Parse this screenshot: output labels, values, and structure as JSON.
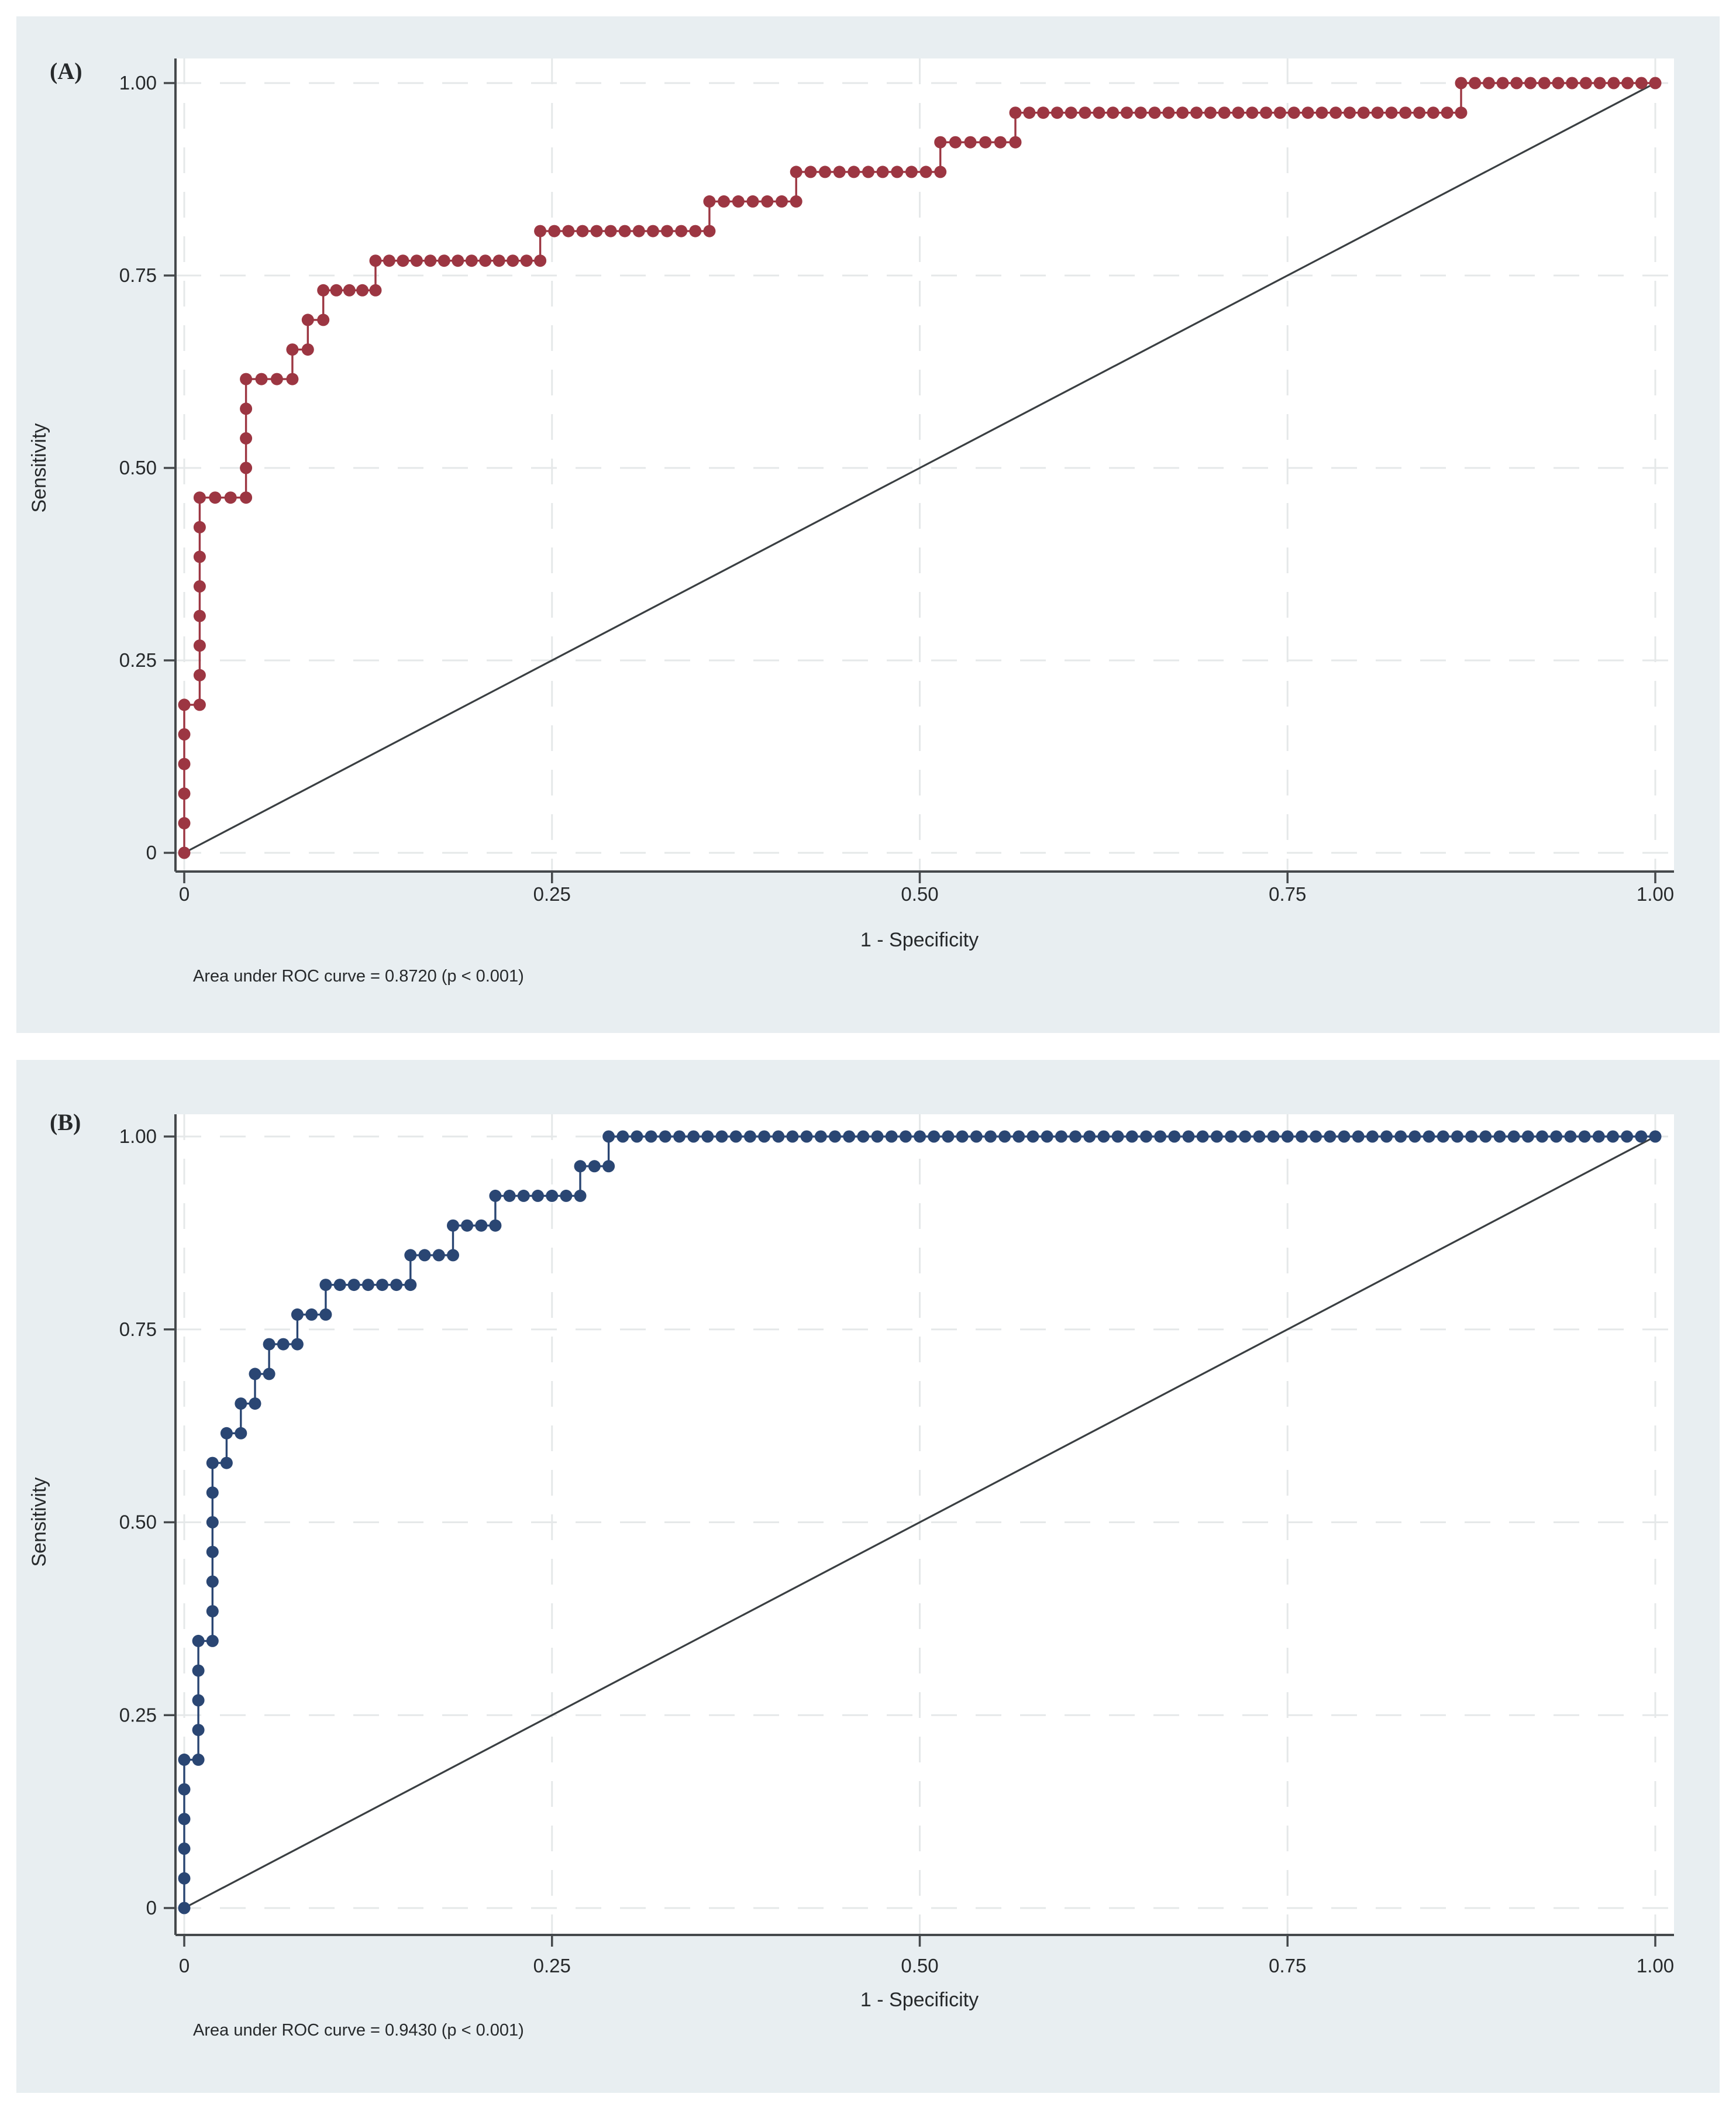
{
  "style": {
    "page_bg": "#ffffff",
    "panel_bg": "#e8eef1",
    "plot_bg": "#ffffff",
    "grid_color": "#e5e8e9",
    "axis_color": "#45494c",
    "text_color": "#26292b",
    "reference_line_color": "#3a3f42"
  },
  "chart_data": [
    {
      "id": "A",
      "panel_label": "(A)",
      "type": "line",
      "subtype": "roc_step_with_markers",
      "xlabel": "1 - Specificity",
      "ylabel": "Sensitivity",
      "caption": "Area under ROC curve = 0.8720 (p < 0.001)",
      "auc": 0.872,
      "p_text": "p < 0.001",
      "xlim": [
        0,
        1
      ],
      "ylim": [
        0,
        1
      ],
      "grid": "dashed",
      "legend": "none",
      "series_color": "#9c3642",
      "marker_dx": 0.0095,
      "marker_dy": 0.03846,
      "xticks": [
        {
          "v": 0,
          "label": "0"
        },
        {
          "v": 0.25,
          "label": "0.25"
        },
        {
          "v": 0.5,
          "label": "0.50"
        },
        {
          "v": 0.75,
          "label": "0.75"
        },
        {
          "v": 1,
          "label": "1.00"
        }
      ],
      "yticks": [
        {
          "v": 0,
          "label": "0"
        },
        {
          "v": 0.25,
          "label": "0.25"
        },
        {
          "v": 0.5,
          "label": "0.50"
        },
        {
          "v": 0.75,
          "label": "0.75"
        },
        {
          "v": 1,
          "label": "1.00"
        }
      ],
      "reference_line": {
        "from": [
          0,
          0
        ],
        "to": [
          1,
          1
        ]
      },
      "step_points": [
        [
          0,
          0
        ],
        [
          0,
          0.1923
        ],
        [
          0.0105,
          0.1923
        ],
        [
          0.0105,
          0.4615
        ],
        [
          0.042,
          0.4615
        ],
        [
          0.042,
          0.6154
        ],
        [
          0.0735,
          0.6154
        ],
        [
          0.0735,
          0.6538
        ],
        [
          0.084,
          0.6538
        ],
        [
          0.084,
          0.6923
        ],
        [
          0.0945,
          0.6923
        ],
        [
          0.0945,
          0.7308
        ],
        [
          0.13,
          0.7308
        ],
        [
          0.13,
          0.7692
        ],
        [
          0.242,
          0.7692
        ],
        [
          0.242,
          0.8077
        ],
        [
          0.357,
          0.8077
        ],
        [
          0.357,
          0.8462
        ],
        [
          0.416,
          0.8462
        ],
        [
          0.416,
          0.8846
        ],
        [
          0.514,
          0.8846
        ],
        [
          0.514,
          0.9231
        ],
        [
          0.565,
          0.9231
        ],
        [
          0.565,
          0.9615
        ],
        [
          0.868,
          0.9615
        ],
        [
          0.868,
          1
        ],
        [
          1,
          1
        ]
      ]
    },
    {
      "id": "B",
      "panel_label": "(B)",
      "type": "line",
      "subtype": "roc_step_with_markers",
      "xlabel": "1 - Specificity",
      "ylabel": "Sensitivity",
      "caption": "Area under ROC curve = 0.9430 (p < 0.001)",
      "auc": 0.943,
      "p_text": "p < 0.001",
      "xlim": [
        0,
        1
      ],
      "ylim": [
        0,
        1
      ],
      "grid": "dashed",
      "legend": "none",
      "series_color": "#2a4673",
      "marker_dx": 0.0096,
      "marker_dy": 0.03846,
      "xticks": [
        {
          "v": 0,
          "label": "0"
        },
        {
          "v": 0.25,
          "label": "0.25"
        },
        {
          "v": 0.5,
          "label": "0.50"
        },
        {
          "v": 0.75,
          "label": "0.75"
        },
        {
          "v": 1,
          "label": "1.00"
        }
      ],
      "yticks": [
        {
          "v": 0,
          "label": "0"
        },
        {
          "v": 0.25,
          "label": "0.25"
        },
        {
          "v": 0.5,
          "label": "0.50"
        },
        {
          "v": 0.75,
          "label": "0.75"
        },
        {
          "v": 1,
          "label": "1.00"
        }
      ],
      "reference_line": {
        "from": [
          0,
          0
        ],
        "to": [
          1,
          1
        ]
      },
      "step_points": [
        [
          0,
          0
        ],
        [
          0,
          0.1923
        ],
        [
          0.0096,
          0.1923
        ],
        [
          0.0096,
          0.3462
        ],
        [
          0.0192,
          0.3462
        ],
        [
          0.0192,
          0.5769
        ],
        [
          0.0288,
          0.5769
        ],
        [
          0.0288,
          0.6154
        ],
        [
          0.0385,
          0.6154
        ],
        [
          0.0385,
          0.6538
        ],
        [
          0.0481,
          0.6538
        ],
        [
          0.0481,
          0.6923
        ],
        [
          0.0577,
          0.6923
        ],
        [
          0.0577,
          0.7308
        ],
        [
          0.0769,
          0.7308
        ],
        [
          0.0769,
          0.7692
        ],
        [
          0.0962,
          0.7692
        ],
        [
          0.0962,
          0.8077
        ],
        [
          0.1538,
          0.8077
        ],
        [
          0.1538,
          0.8462
        ],
        [
          0.1827,
          0.8462
        ],
        [
          0.1827,
          0.8846
        ],
        [
          0.2115,
          0.8846
        ],
        [
          0.2115,
          0.9231
        ],
        [
          0.2692,
          0.9231
        ],
        [
          0.2692,
          0.9615
        ],
        [
          0.2885,
          0.9615
        ],
        [
          0.2885,
          1
        ],
        [
          1,
          1
        ]
      ]
    }
  ]
}
